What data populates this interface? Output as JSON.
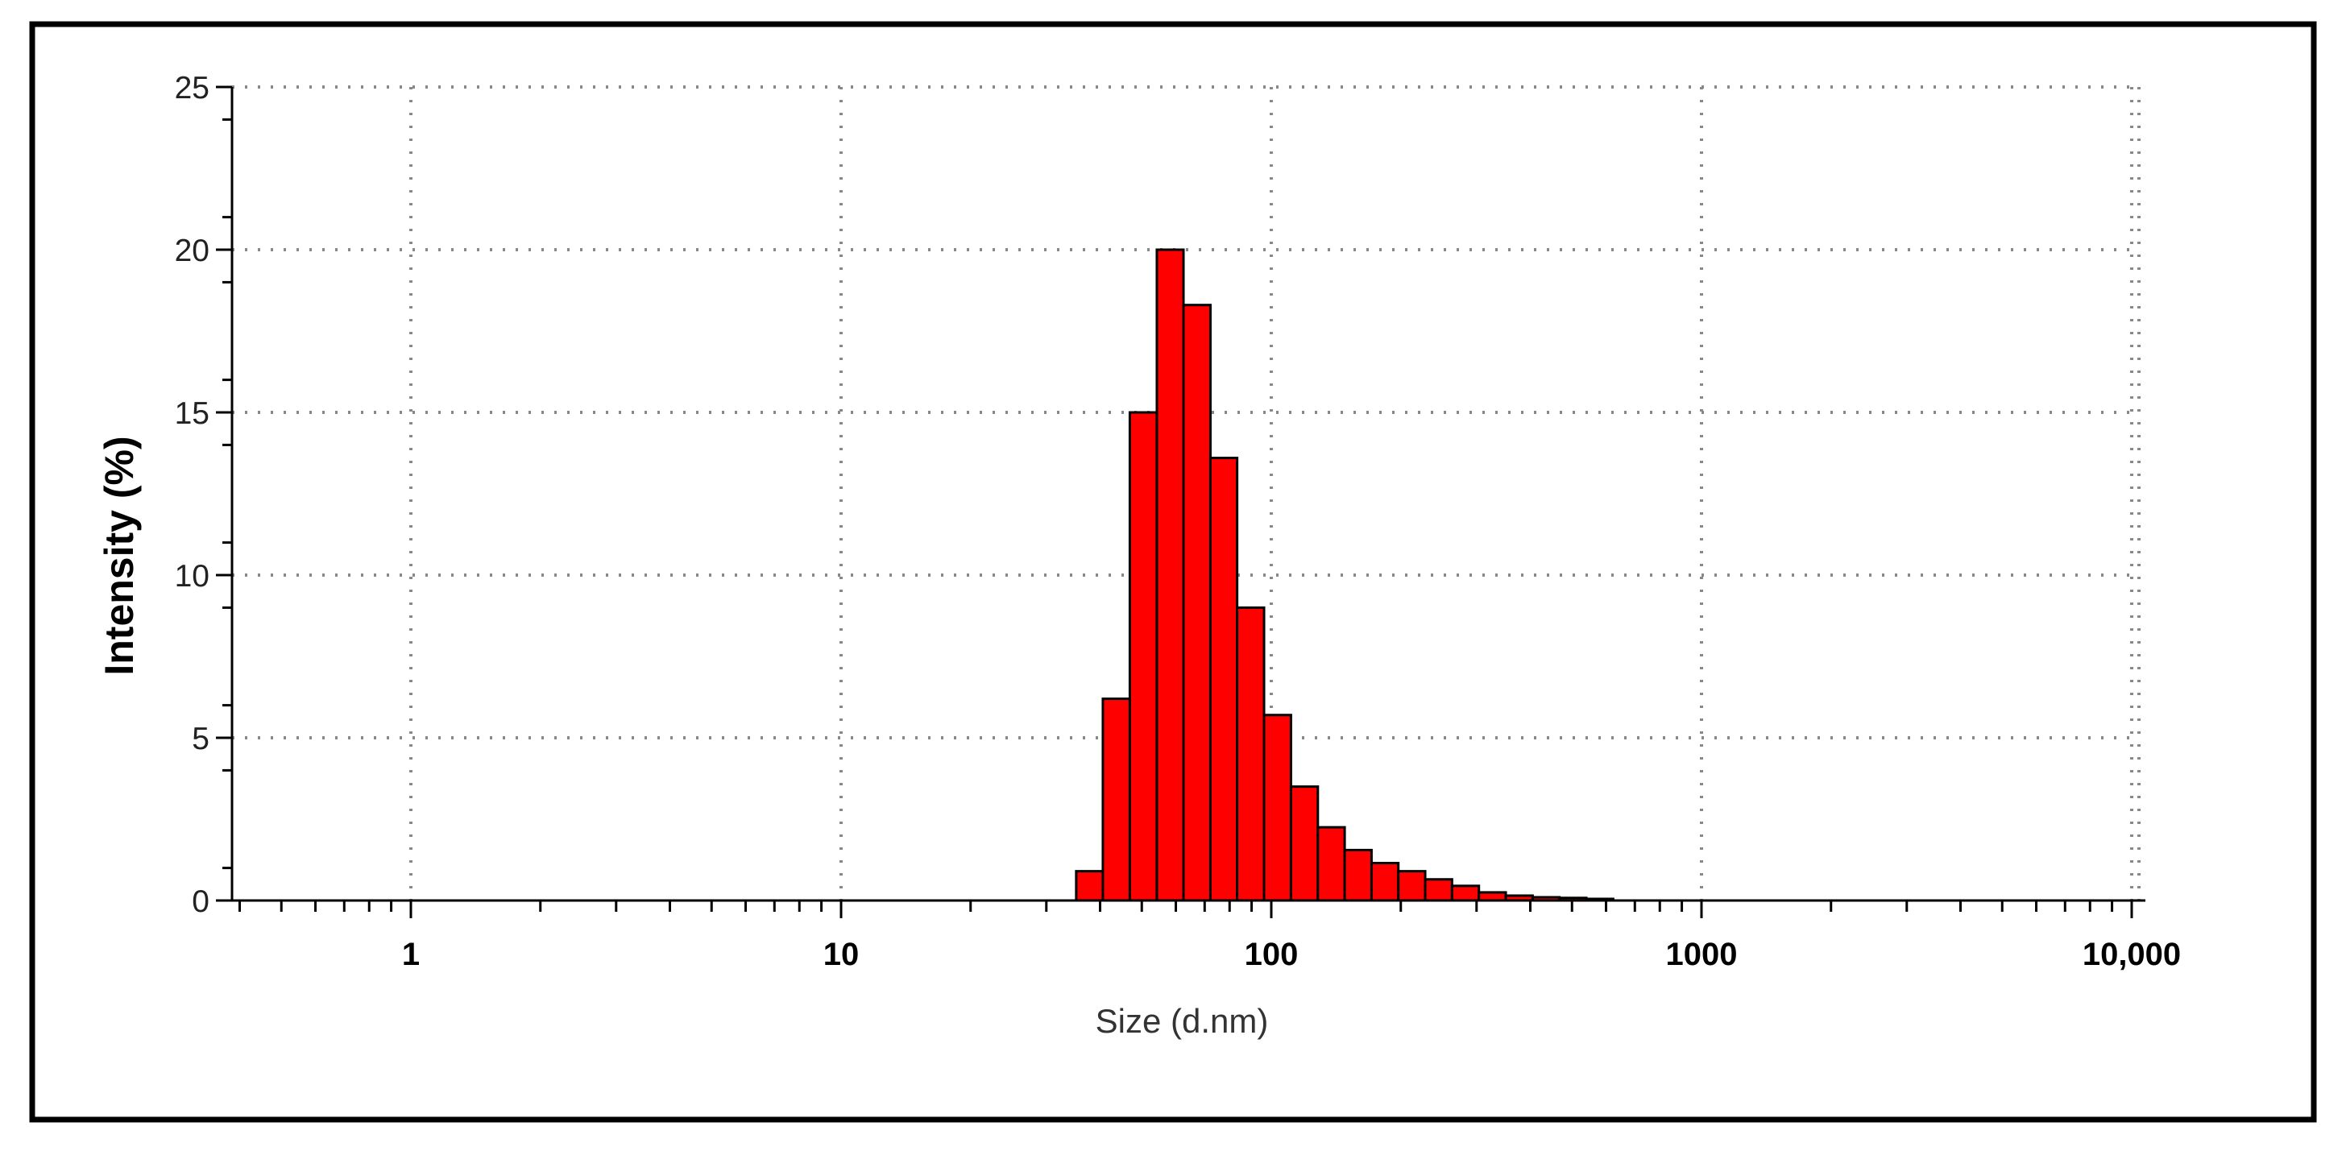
{
  "chart_data": {
    "type": "bar",
    "title": "",
    "xlabel": "Size (d.nm)",
    "ylabel": "Intensity (%)",
    "x_scale": "log",
    "xlim": [
      0.4,
      10000
    ],
    "ylim": [
      0,
      25
    ],
    "grid": true,
    "x_tick_labels": [
      {
        "value": 1,
        "label": "1"
      },
      {
        "value": 10,
        "label": "10"
      },
      {
        "value": 100,
        "label": "100"
      },
      {
        "value": 1000,
        "label": "1000"
      },
      {
        "value": 10000,
        "label": "10,000"
      }
    ],
    "y_ticks": [
      0,
      5,
      10,
      15,
      20,
      25
    ],
    "bar_color": "#ff0000",
    "bar_edge_color": "#000000",
    "series": [
      {
        "bins": [
          {
            "x_start": 35.2,
            "x_end": 40.6,
            "value": 0.9
          },
          {
            "x_start": 40.6,
            "x_end": 46.9,
            "value": 6.2
          },
          {
            "x_start": 46.9,
            "x_end": 54.2,
            "value": 15.0
          },
          {
            "x_start": 54.2,
            "x_end": 62.5,
            "value": 20.0
          },
          {
            "x_start": 62.5,
            "x_end": 72.2,
            "value": 18.3
          },
          {
            "x_start": 72.2,
            "x_end": 83.3,
            "value": 13.6
          },
          {
            "x_start": 83.3,
            "x_end": 96.2,
            "value": 9.0
          },
          {
            "x_start": 96.2,
            "x_end": 111.1,
            "value": 5.7
          },
          {
            "x_start": 111.1,
            "x_end": 128.3,
            "value": 3.5
          },
          {
            "x_start": 128.3,
            "x_end": 148.1,
            "value": 2.25
          },
          {
            "x_start": 148.1,
            "x_end": 171.0,
            "value": 1.55
          },
          {
            "x_start": 171.0,
            "x_end": 197.4,
            "value": 1.15
          },
          {
            "x_start": 197.4,
            "x_end": 227.9,
            "value": 0.9
          },
          {
            "x_start": 227.9,
            "x_end": 263.1,
            "value": 0.65
          },
          {
            "x_start": 263.1,
            "x_end": 303.8,
            "value": 0.45
          },
          {
            "x_start": 303.8,
            "x_end": 350.8,
            "value": 0.25
          },
          {
            "x_start": 350.8,
            "x_end": 405.0,
            "value": 0.15
          },
          {
            "x_start": 405.0,
            "x_end": 467.6,
            "value": 0.1
          },
          {
            "x_start": 467.6,
            "x_end": 539.9,
            "value": 0.08
          },
          {
            "x_start": 539.9,
            "x_end": 623.3,
            "value": 0.05
          }
        ]
      }
    ]
  }
}
